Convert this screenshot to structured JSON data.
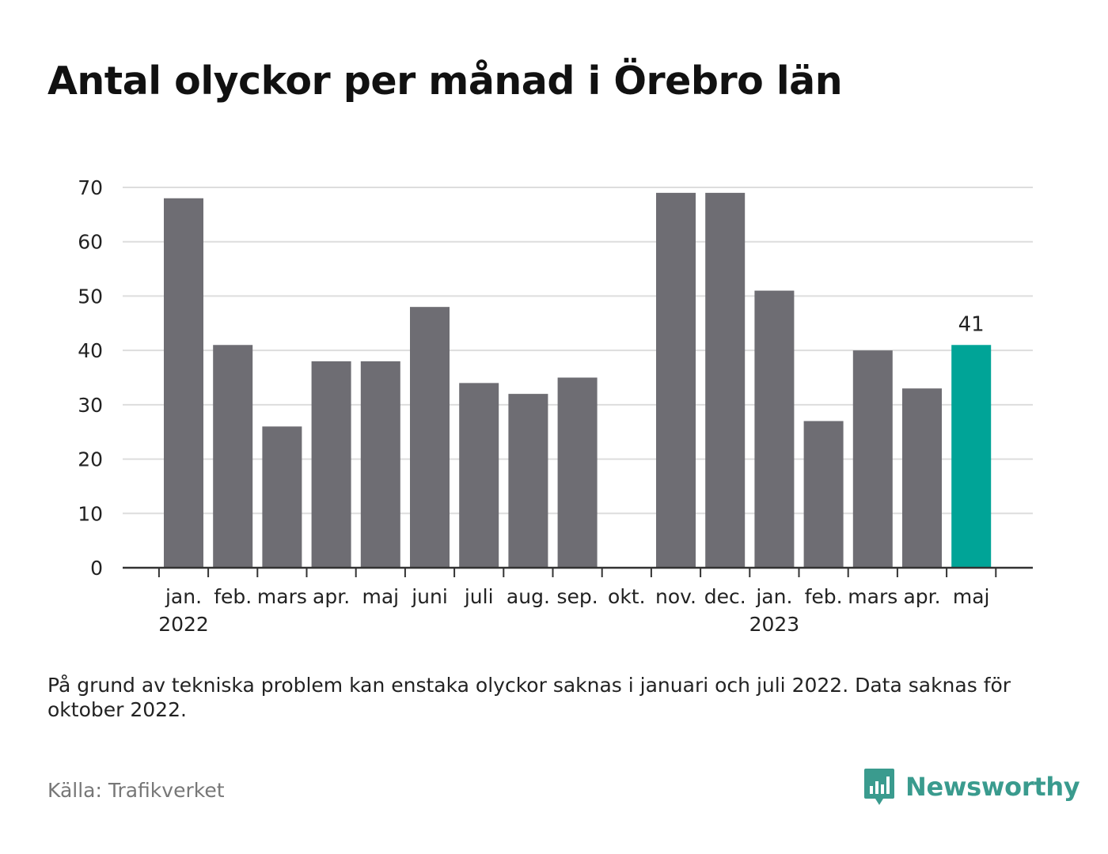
{
  "title": "Antal olyckor per månad i Örebro län",
  "footnote": "På grund av tekniska problem kan enstaka olyckor saknas i januari och juli 2022. Data saknas för oktober 2022.",
  "source": "Källa: Trafikverket",
  "brand": {
    "name": "Newsworthy",
    "icon": "newsworthy-logo-icon",
    "color": "#3a9b8e"
  },
  "colors": {
    "bar": "#6e6d73",
    "highlight": "#00a497",
    "grid": "#dddddd",
    "axis": "#333333"
  },
  "chart_data": {
    "type": "bar",
    "categories": [
      "jan.",
      "feb.",
      "mars",
      "apr.",
      "maj",
      "juni",
      "juli",
      "aug.",
      "sep.",
      "okt.",
      "nov.",
      "dec.",
      "jan.",
      "feb.",
      "mars",
      "apr.",
      "maj"
    ],
    "year_labels": [
      {
        "index": 0,
        "label": "2022"
      },
      {
        "index": 12,
        "label": "2023"
      }
    ],
    "values": [
      68,
      41,
      26,
      38,
      38,
      48,
      34,
      32,
      35,
      null,
      69,
      69,
      51,
      27,
      40,
      33,
      41
    ],
    "highlight_index": 16,
    "highlight_label": "41",
    "yticks": [
      0,
      10,
      20,
      30,
      40,
      50,
      60,
      70
    ],
    "ylim": [
      0,
      70
    ],
    "grid": true,
    "xlabel": "",
    "ylabel": ""
  }
}
